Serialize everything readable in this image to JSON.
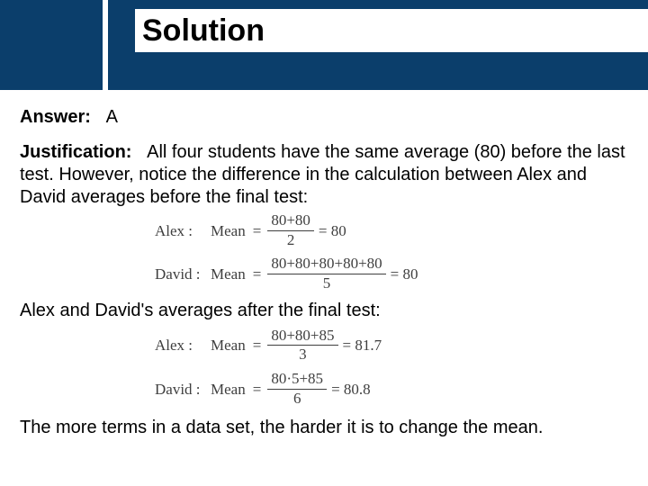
{
  "header": {
    "title": "Solution"
  },
  "answer": {
    "label": "Answer:",
    "value": "A"
  },
  "justification": {
    "label": "Justification:",
    "text": "All four students have the same average (80) before the last test.  However, notice the difference in the calculation between Alex and David averages before the final test:"
  },
  "equations_before": [
    {
      "name": "Alex :",
      "mean_label": "Mean",
      "numerator": "80+80",
      "denominator": "2",
      "result": "= 80"
    },
    {
      "name": "David :",
      "mean_label": "Mean",
      "numerator": "80+80+80+80+80",
      "denominator": "5",
      "result": "= 80"
    }
  ],
  "after_text": "Alex and David's averages after the final test:",
  "equations_after": [
    {
      "name": "Alex :",
      "mean_label": "Mean",
      "numerator": "80+80+85",
      "denominator": "3",
      "result": "= 81.7"
    },
    {
      "name": "David :",
      "mean_label": "Mean",
      "numerator": "80·5+85",
      "denominator": "6",
      "result": "= 80.8"
    }
  ],
  "final_text": "The more terms in a data set, the harder it is to change the mean.",
  "style": {
    "header_bg": "#0b3e6b",
    "header_title_color": "#000000",
    "body_text_color": "#000000",
    "eq_text_color": "#3f3f3f",
    "title_fontsize": 34,
    "body_fontsize": 20,
    "eq_fontsize": 17
  }
}
